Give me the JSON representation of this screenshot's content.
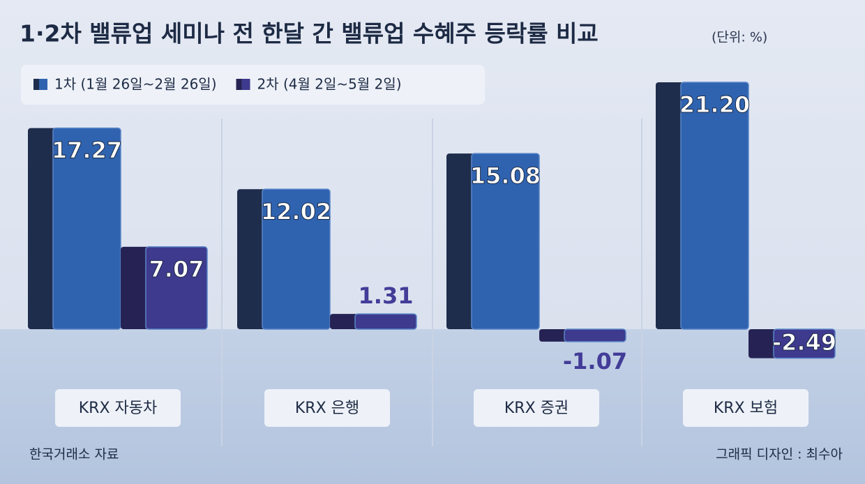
{
  "chart_data": {
    "type": "bar",
    "title": "1·2차 밸류업 세미나 전 한달 간 밸류업 수혜주 등락률 비교",
    "subtitle": "(단위: %)",
    "categories": [
      "KRX 자동차",
      "KRX 은행",
      "KRX 증권",
      "KRX 보험"
    ],
    "series": [
      {
        "name": "1차 (1월 26일~2월 26일)",
        "color": "#2f63b0",
        "values": [
          17.27,
          12.02,
          15.08,
          21.2
        ],
        "value_labels": [
          "17.27",
          "12.02",
          "15.08",
          "21.20"
        ]
      },
      {
        "name": "2차 (4월 2일~5월 2일)",
        "color": "#3e3a8e",
        "values": [
          7.07,
          1.31,
          -1.07,
          -2.49
        ],
        "value_labels": [
          "7.07",
          "1.31",
          "-1.07",
          "-2.49"
        ]
      }
    ],
    "source": "한국거래소 자료",
    "credit": "그래픽 디자인 : 최수아"
  }
}
